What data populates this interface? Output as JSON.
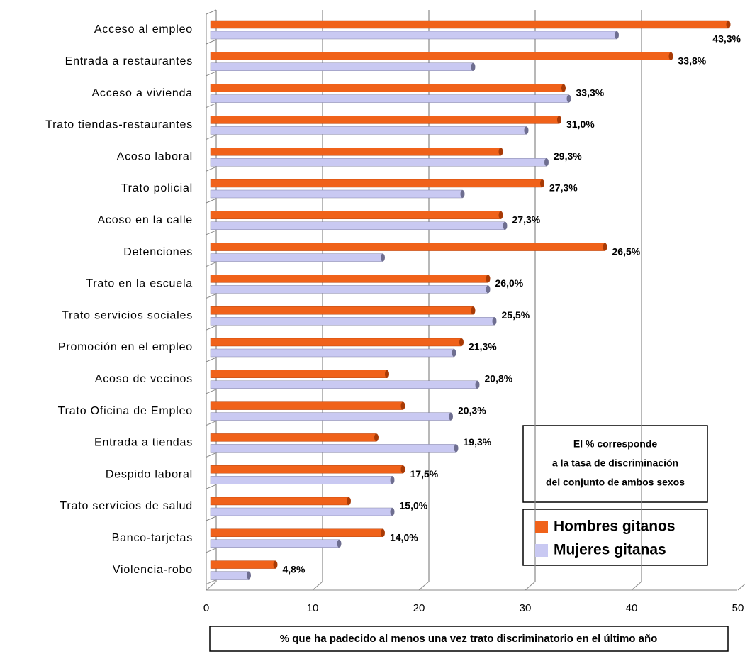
{
  "chart_data": {
    "type": "bar",
    "orientation": "horizontal",
    "categories": [
      "Acceso al empleo",
      "Entrada a restaurantes",
      "Acceso a vivienda",
      "Trato tiendas-restaurantes",
      "Acoso laboral",
      "Trato policial",
      "Acoso en la calle",
      "Detenciones",
      "Trato en la escuela",
      "Trato servicios sociales",
      "Promoción en el empleo",
      "Acoso de vecinos",
      "Trato Oficina de Empleo",
      "Entrada a tiendas",
      "Despido laboral",
      "Trato servicios de salud",
      "Banco-tarjetas",
      "Violencia-robo"
    ],
    "series": [
      {
        "name": "Hombres gitanos",
        "color": "#f0621a",
        "values": [
          48.7,
          43.3,
          33.2,
          32.8,
          27.3,
          31.2,
          27.3,
          37.1,
          26.1,
          24.7,
          23.6,
          16.6,
          18.1,
          15.6,
          18.1,
          13.0,
          16.2,
          6.1
        ]
      },
      {
        "name": "Mujeres gitanas",
        "color": "#c9c9f2",
        "values": [
          38.2,
          24.7,
          33.7,
          29.7,
          31.6,
          23.7,
          27.7,
          16.2,
          26.1,
          26.7,
          22.9,
          25.1,
          22.6,
          23.1,
          17.1,
          17.1,
          12.1,
          3.6
        ]
      }
    ],
    "rate_labels": [
      "43,3%",
      "33,8%",
      "33,3%",
      "31,0%",
      "29,3%",
      "27,3%",
      "27,3%",
      "26,5%",
      "26,0%",
      "25,5%",
      "21,3%",
      "20,8%",
      "20,3%",
      "19,3%",
      "17,5%",
      "15,0%",
      "14,0%",
      "4,8%"
    ],
    "note": [
      "El % corresponde",
      "a la tasa de discriminación",
      "del conjunto de ambos sexos"
    ],
    "xlabel": "% que ha padecido al menos una vez trato discriminatorio en el último año",
    "xlim": [
      0,
      50
    ],
    "xticks": [
      0,
      10,
      20,
      30,
      40,
      50
    ],
    "grid": true,
    "legend": "lower right"
  }
}
